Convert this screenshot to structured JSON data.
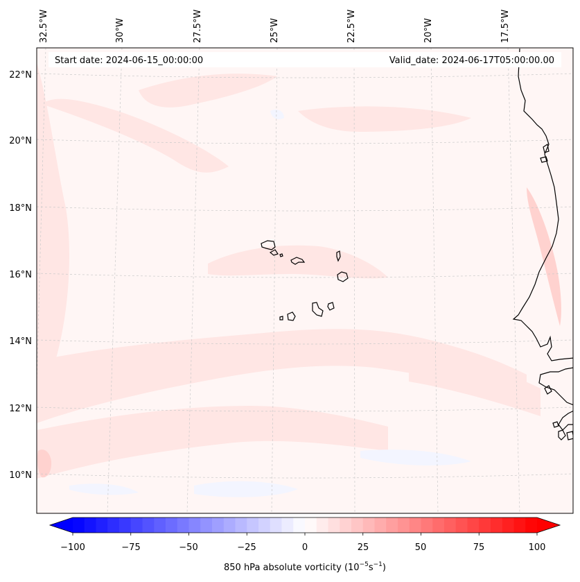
{
  "map": {
    "start_date_label": "Start date: 2024-06-15_00:00:00",
    "valid_date_label": "Valid_date: 2024-06-17T05:00:00.00",
    "top_longitude_labels": [
      "32.5°W",
      "30°W",
      "27.5°W",
      "25°W",
      "22.5°W",
      "20°W",
      "17.5°W"
    ],
    "left_latitude_labels": [
      "22°N",
      "20°N",
      "18°N",
      "16°N",
      "14°N",
      "12°N",
      "10°N"
    ],
    "lon_range_deg": [
      -33.0,
      -15.5
    ],
    "lat_range_deg": [
      8.8,
      22.8
    ]
  },
  "colorbar": {
    "label_prefix": "850 hPa absolute vorticity (10",
    "label_exp1": "−5",
    "label_mid": "s",
    "label_exp2": "−1",
    "label_suffix": ")",
    "tick_labels": [
      "−100",
      "−75",
      "−50",
      "−25",
      "0",
      "25",
      "50",
      "75",
      "100"
    ],
    "tick_values": [
      -100,
      -75,
      -50,
      -25,
      0,
      25,
      50,
      75,
      100
    ],
    "range": [
      -100,
      100
    ],
    "step": 5,
    "colormap": "bwr",
    "min_color": "#0000ff",
    "mid_color": "#ffffff",
    "max_color": "#ff0000"
  },
  "colors": {
    "background_field": "#fff6f5",
    "weak_positive": "#ffe6e4",
    "moderate_positive": "#ffd2cf",
    "weak_negative": "#f3f5ff",
    "coastline": "#000000",
    "gridline": "#c9c9c9"
  }
}
